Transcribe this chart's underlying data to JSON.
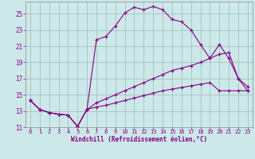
{
  "xlabel": "Windchill (Refroidissement éolien,°C)",
  "bg_color": "#cce8e8",
  "line_color": "#880088",
  "grid_color": "#99bbbb",
  "xlim": [
    -0.5,
    23.5
  ],
  "ylim": [
    11,
    26.5
  ],
  "xticks": [
    0,
    1,
    2,
    3,
    4,
    5,
    6,
    7,
    8,
    9,
    10,
    11,
    12,
    13,
    14,
    15,
    16,
    17,
    18,
    19,
    20,
    21,
    22,
    23
  ],
  "yticks": [
    11,
    13,
    15,
    17,
    19,
    21,
    23,
    25
  ],
  "figsize": [
    3.2,
    2.0
  ],
  "dpi": 100,
  "line1_x": [
    0,
    1,
    2,
    3,
    4,
    5,
    6,
    7,
    8,
    9,
    10,
    11,
    12,
    13,
    14,
    15,
    16,
    17,
    18,
    19,
    20,
    21,
    22,
    23
  ],
  "line1_y": [
    14.3,
    13.2,
    12.8,
    12.6,
    12.5,
    11.1,
    13.2,
    21.8,
    22.2,
    23.5,
    25.1,
    25.8,
    25.5,
    25.9,
    25.5,
    24.3,
    24.0,
    23.0,
    21.2,
    19.5,
    21.2,
    19.5,
    17.0,
    15.5
  ],
  "line2_x": [
    0,
    1,
    2,
    3,
    4,
    5,
    6,
    7,
    8,
    9,
    10,
    11,
    12,
    13,
    14,
    15,
    16,
    17,
    18,
    19,
    20,
    21,
    22,
    23
  ],
  "line2_y": [
    14.3,
    13.2,
    12.8,
    12.6,
    12.5,
    11.1,
    13.2,
    14.0,
    14.5,
    15.0,
    15.5,
    16.0,
    16.5,
    17.0,
    17.5,
    18.0,
    18.3,
    18.6,
    19.0,
    19.5,
    20.0,
    20.2,
    17.0,
    16.0
  ],
  "line3_x": [
    0,
    1,
    2,
    3,
    4,
    5,
    6,
    7,
    8,
    9,
    10,
    11,
    12,
    13,
    14,
    15,
    16,
    17,
    18,
    19,
    20,
    21,
    22,
    23
  ],
  "line3_y": [
    14.3,
    13.2,
    12.8,
    12.6,
    12.5,
    11.1,
    13.2,
    13.5,
    13.7,
    14.0,
    14.3,
    14.6,
    14.9,
    15.2,
    15.5,
    15.7,
    15.9,
    16.1,
    16.3,
    16.5,
    15.5,
    15.5,
    15.5,
    15.5
  ]
}
